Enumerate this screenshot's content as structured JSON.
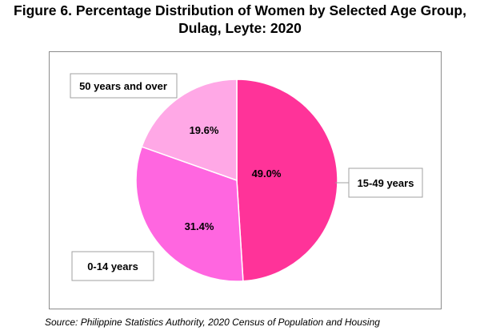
{
  "title_line1": "Figure 6. Percentage Distribution of Women by Selected Age Group,",
  "title_line2": "Dulag, Leyte: 2020",
  "source": "Source: Philippine Statistics Authority, 2020 Census of Population and Housing",
  "chart_data": {
    "type": "pie",
    "categories": [
      "15-49 years",
      "0-14 years",
      "50 years and over"
    ],
    "values": [
      49.0,
      31.4,
      19.6
    ],
    "value_labels": [
      "49.0%",
      "31.4%",
      "19.6%"
    ],
    "colors": [
      "#ff3399",
      "#ff66e0",
      "#ffa8e6"
    ],
    "start": "12 o'clock",
    "direction": "clockwise",
    "legend": "none; category names shown in callout boxes"
  }
}
